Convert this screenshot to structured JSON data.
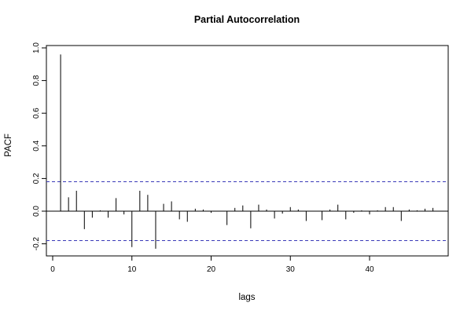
{
  "chart_data": {
    "type": "bar",
    "title": "Partial Autocorrelation",
    "xlabel": "lags",
    "ylabel": "PACF",
    "xlim": [
      0,
      48
    ],
    "ylim": [
      -0.28,
      1.0
    ],
    "x_ticks": [
      0,
      10,
      20,
      30,
      40
    ],
    "y_ticks": [
      -0.2,
      0.0,
      0.2,
      0.4,
      0.6,
      0.8,
      1.0
    ],
    "y_tick_labels": [
      "-0.2",
      "0.0",
      "0.2",
      "0.4",
      "0.6",
      "0.8",
      "1.0"
    ],
    "confidence_bounds": [
      0.18,
      -0.18
    ],
    "bound_color": "#3a3ab8",
    "bar_color": "#000000",
    "grid": false,
    "series": [
      {
        "lags": [
          1,
          2,
          3,
          4,
          5,
          6,
          7,
          8,
          9,
          10,
          11,
          12,
          13,
          14,
          15,
          16,
          17,
          18,
          19,
          20,
          21,
          22,
          23,
          24,
          25,
          26,
          27,
          28,
          29,
          30,
          31,
          32,
          33,
          34,
          35,
          36,
          37,
          38,
          39,
          40,
          41,
          42,
          43,
          44,
          45,
          46,
          47,
          48
        ],
        "values": [
          0.96,
          0.085,
          0.125,
          -0.11,
          -0.04,
          0.005,
          -0.04,
          0.08,
          -0.02,
          -0.22,
          0.125,
          0.1,
          -0.23,
          0.045,
          0.06,
          -0.05,
          -0.065,
          0.015,
          0.01,
          -0.01,
          0.0,
          -0.085,
          0.02,
          0.035,
          -0.105,
          0.04,
          0.01,
          -0.045,
          -0.015,
          0.025,
          0.01,
          -0.06,
          0.0,
          -0.055,
          0.01,
          0.04,
          -0.05,
          -0.01,
          0.005,
          -0.02,
          0.005,
          0.025,
          0.025,
          -0.06,
          0.01,
          0.005,
          0.015,
          0.02
        ]
      }
    ]
  }
}
